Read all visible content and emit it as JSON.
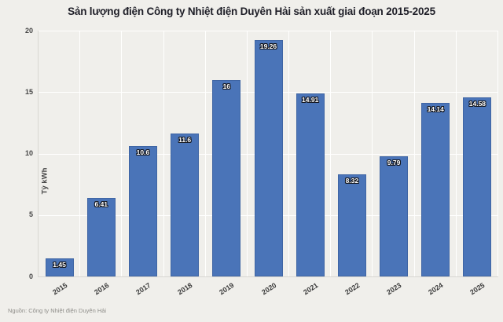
{
  "title": "Sản lượng điện Công ty Nhiệt điện Duyên Hải sản xuất giai đoạn 2015-2025",
  "source_note": "Nguồn: Công ty Nhiệt điện Duyên Hải",
  "chart_data": {
    "type": "bar",
    "title": "Sản lượng điện Công ty Nhiệt điện Duyên Hải sản xuất giai đoạn 2015-2025",
    "categories": [
      "2015",
      "2016",
      "2017",
      "2018",
      "2019",
      "2020",
      "2021",
      "2022",
      "2023",
      "2024",
      "2025"
    ],
    "values": [
      1.45,
      6.41,
      10.6,
      11.6,
      16,
      19.26,
      14.91,
      8.32,
      9.79,
      14.14,
      14.58
    ],
    "value_labels": [
      "1.45",
      "6.41",
      "10.6",
      "11.6",
      "16",
      "19.26",
      "14.91",
      "8.32",
      "9.79",
      "14.14",
      "14.58"
    ],
    "xlabel": "",
    "ylabel": "Tỷ kWh",
    "ylim": [
      0,
      20
    ],
    "yticks": [
      0,
      5,
      10,
      15,
      20
    ],
    "grid": "on",
    "legend": "none",
    "colors": {
      "bar": "#4a74b8",
      "bar_border": "#3f65a4",
      "background": "#f0efeb",
      "gridline": "#ffffff",
      "axis_line": "#d8d7d2",
      "value_label_text": "#ffffff",
      "value_label_outline": "#14171f"
    }
  }
}
